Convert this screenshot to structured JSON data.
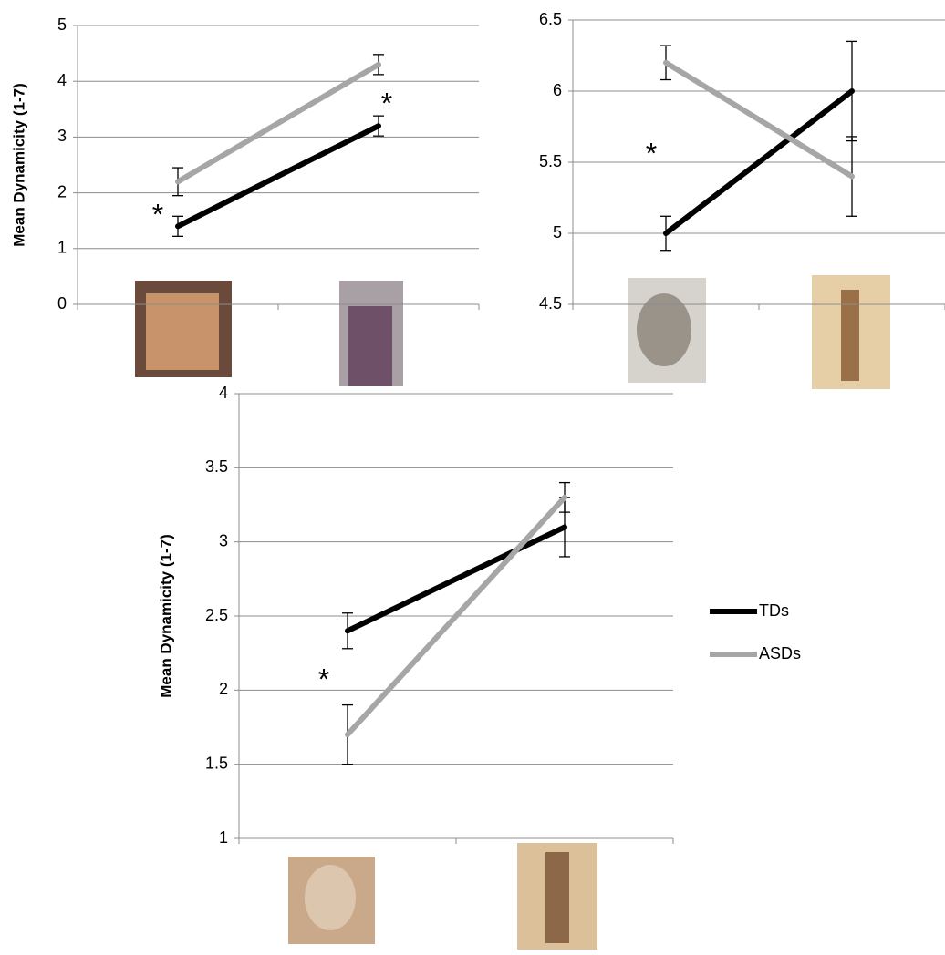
{
  "chart_data": [
    {
      "type": "line",
      "y_label": "Mean Dynamicity (1-7)",
      "categories": [
        null,
        null
      ],
      "ylim": [
        0,
        5
      ],
      "yticks": [
        0,
        1,
        2,
        3,
        4,
        5
      ],
      "grid": true,
      "series": [
        {
          "name": "TDs",
          "color": "#000000",
          "values": [
            1.4,
            3.2
          ],
          "errors": [
            0.18,
            0.18
          ]
        },
        {
          "name": "ASDs",
          "color": "#a6a6a6",
          "values": [
            2.2,
            4.3
          ],
          "errors": [
            0.25,
            0.18
          ]
        }
      ],
      "annotations": [
        "*",
        "*"
      ]
    },
    {
      "type": "line",
      "categories": [
        null,
        null
      ],
      "ylim": [
        4.5,
        6.5
      ],
      "yticks": [
        4.5,
        5,
        5.5,
        6,
        6.5
      ],
      "grid": true,
      "series": [
        {
          "name": "TDs",
          "color": "#000000",
          "values": [
            5.0,
            6.0
          ],
          "errors": [
            0.12,
            0.35
          ]
        },
        {
          "name": "ASDs",
          "color": "#a6a6a6",
          "values": [
            6.2,
            5.4
          ],
          "errors": [
            0.12,
            0.28
          ]
        }
      ],
      "annotations": [
        "*"
      ]
    },
    {
      "type": "line",
      "y_label": "Mean Dynamicity (1-7)",
      "categories": [
        null,
        null
      ],
      "ylim": [
        1,
        4
      ],
      "yticks": [
        1,
        1.5,
        2,
        2.5,
        3,
        3.5,
        4
      ],
      "grid": true,
      "legend": "right",
      "series": [
        {
          "name": "TDs",
          "color": "#000000",
          "values": [
            2.4,
            3.1
          ],
          "errors": [
            0.12,
            0.2
          ]
        },
        {
          "name": "ASDs",
          "color": "#a6a6a6",
          "values": [
            1.7,
            3.3
          ],
          "errors": [
            0.2,
            0.1
          ]
        }
      ],
      "annotations": [
        "*"
      ]
    }
  ]
}
